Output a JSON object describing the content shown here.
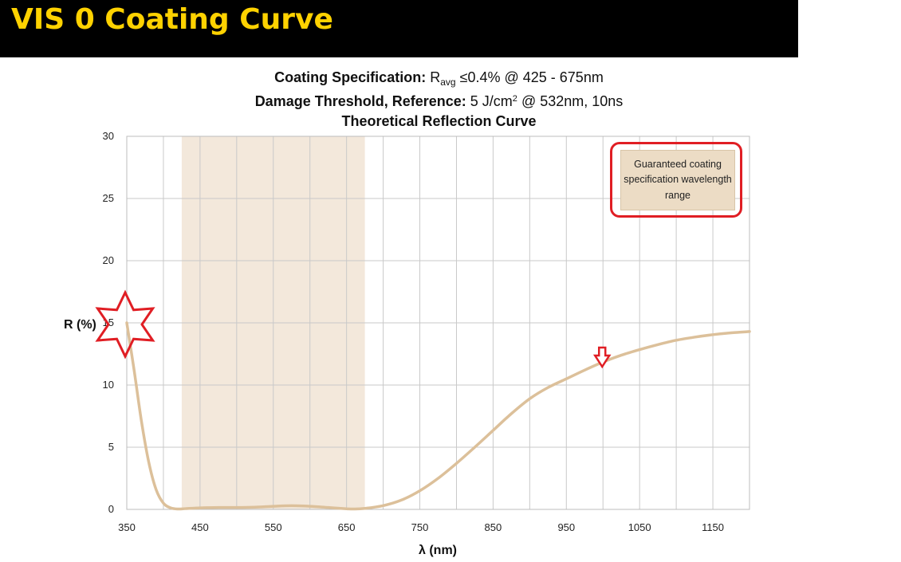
{
  "header": {
    "title": "VIS 0 Coating Curve"
  },
  "spec": {
    "line1_label": "Coating Specification:",
    "line1_symbol": "R",
    "line1_sub": "avg",
    "line1_value": "≤0.4% @ 425 - 675nm",
    "line2_label": "Damage Threshold, Reference:",
    "line2_value": "5 J/cm",
    "line2_sup": "2",
    "line2_tail": "@ 532nm, 10ns",
    "line3": "Theoretical Reflection Curve"
  },
  "legend": {
    "text": "Guaranteed coating specification wavelength range"
  },
  "colors": {
    "curve": "#dcc09a",
    "band": "#f3e8db",
    "grid": "#c9c9c9",
    "annotation": "#e01e24",
    "banner_bg": "#000000",
    "banner_text": "#ffd200"
  },
  "chart_data": {
    "type": "line",
    "title": "Theoretical Reflection Curve",
    "xlabel": "λ (nm)",
    "ylabel": "R (%)",
    "xlim": [
      350,
      1200
    ],
    "ylim": [
      0,
      30
    ],
    "x_ticks": [
      350,
      450,
      550,
      650,
      750,
      850,
      950,
      1050,
      1150
    ],
    "y_ticks": [
      0,
      5,
      10,
      15,
      20,
      25,
      30
    ],
    "x_grid_step": 50,
    "grid": true,
    "legend_position": "top-right",
    "shaded_band": [
      425,
      675
    ],
    "series": [
      {
        "x": [
          350,
          360,
          370,
          380,
          390,
          400,
          410,
          420,
          430,
          450,
          475,
          500,
          525,
          550,
          575,
          600,
          625,
          650,
          660,
          675,
          700,
          725,
          750,
          775,
          800,
          825,
          850,
          875,
          900,
          925,
          950,
          975,
          1000,
          1025,
          1050,
          1075,
          1100,
          1125,
          1150,
          1175,
          1200
        ],
        "values": [
          15.0,
          11.2,
          7.1,
          3.8,
          1.6,
          0.5,
          0.12,
          0.03,
          0.06,
          0.12,
          0.15,
          0.15,
          0.18,
          0.25,
          0.3,
          0.25,
          0.15,
          0.05,
          0.03,
          0.08,
          0.3,
          0.75,
          1.5,
          2.5,
          3.7,
          5.0,
          6.35,
          7.7,
          8.9,
          9.8,
          10.5,
          11.2,
          11.85,
          12.4,
          12.85,
          13.25,
          13.6,
          13.85,
          14.05,
          14.2,
          14.3
        ]
      }
    ],
    "annotations": [
      {
        "type": "star",
        "note": ""
      },
      {
        "type": "arrow-down",
        "x": 1000
      }
    ]
  }
}
